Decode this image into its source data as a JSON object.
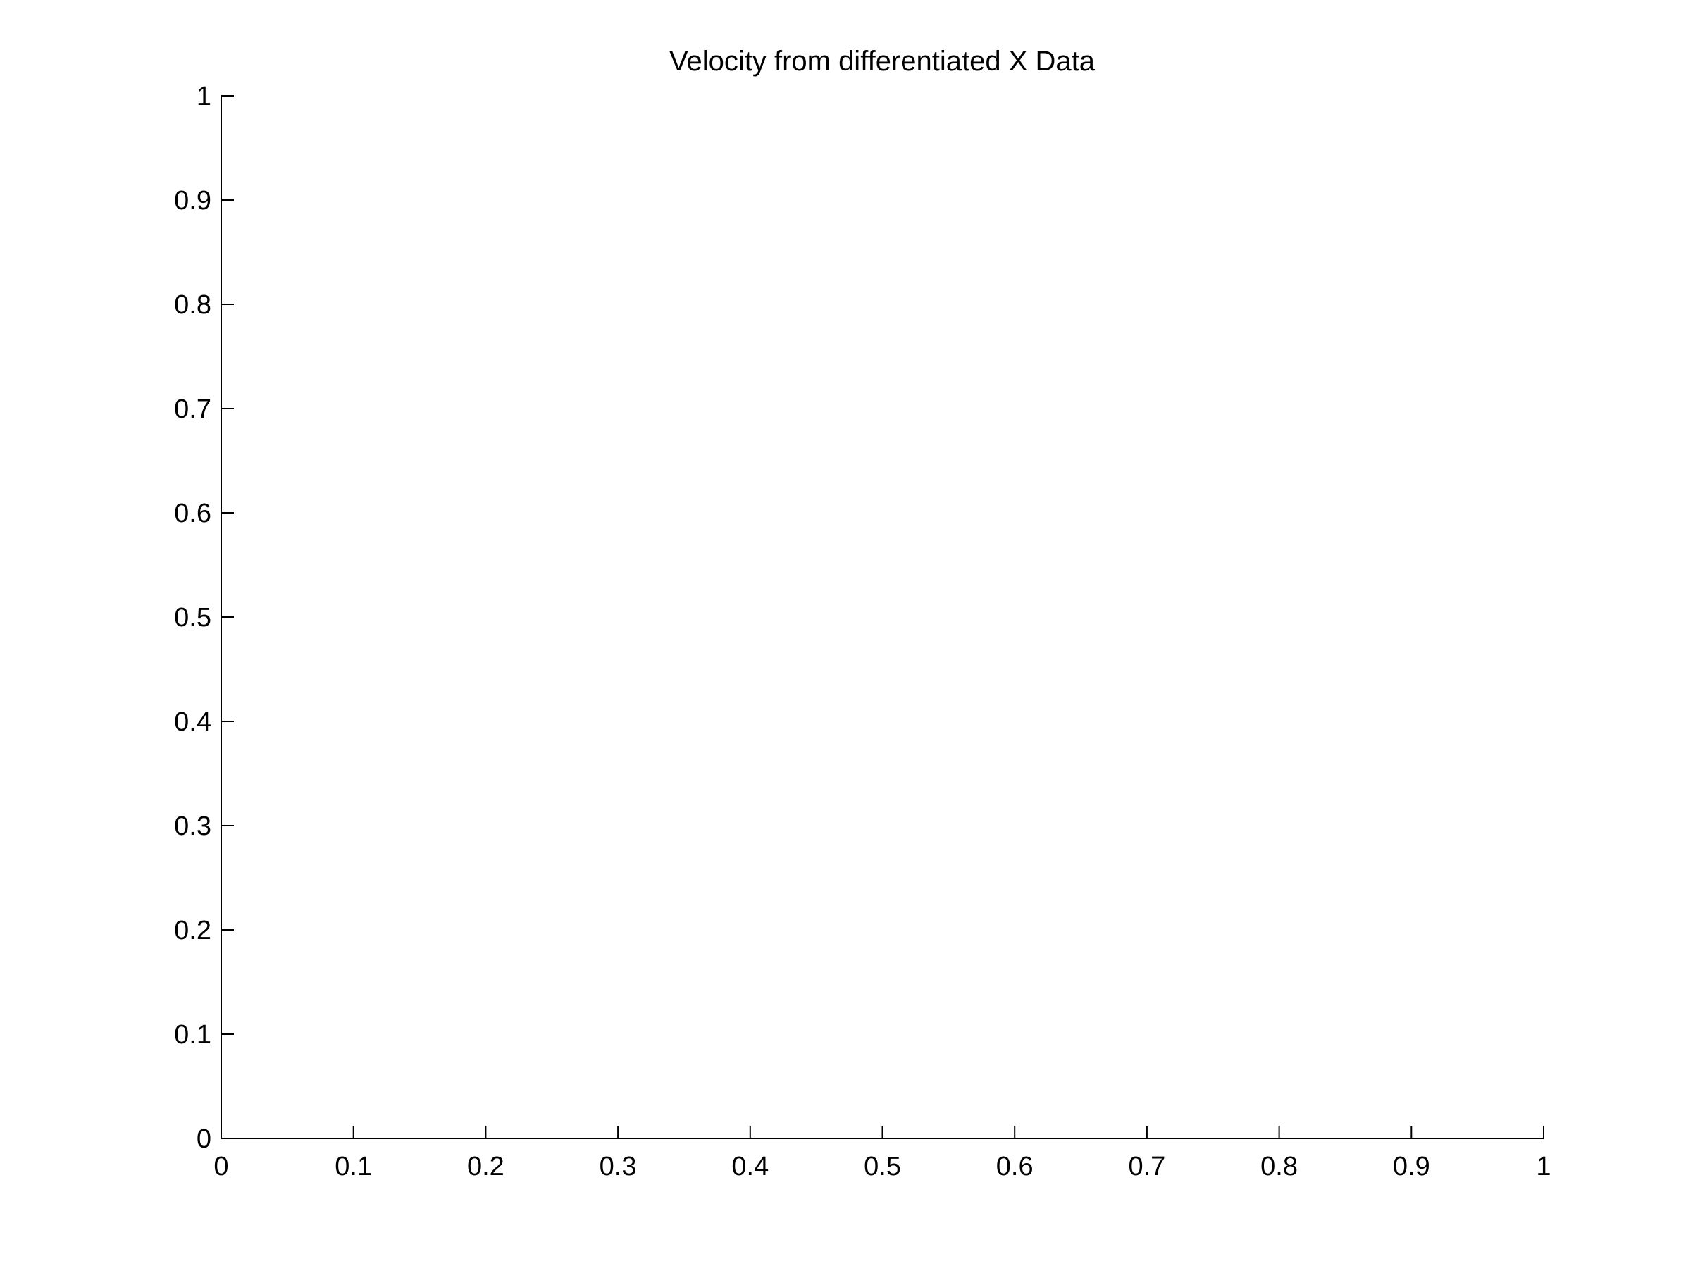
{
  "chart_data": {
    "type": "line",
    "title": "Velocity from differentiated X Data",
    "xlabel": "",
    "ylabel": "",
    "xlim": [
      0,
      1
    ],
    "ylim": [
      0,
      1
    ],
    "xticks": [
      0,
      0.1,
      0.2,
      0.3,
      0.4,
      0.5,
      0.6,
      0.7,
      0.8,
      0.9,
      1
    ],
    "yticks": [
      0,
      0.1,
      0.2,
      0.3,
      0.4,
      0.5,
      0.6,
      0.7,
      0.8,
      0.9,
      1
    ],
    "xtick_labels": [
      "0",
      "0.1",
      "0.2",
      "0.3",
      "0.4",
      "0.5",
      "0.6",
      "0.7",
      "0.8",
      "0.9",
      "1"
    ],
    "ytick_labels": [
      "0",
      "0.1",
      "0.2",
      "0.3",
      "0.4",
      "0.5",
      "0.6",
      "0.7",
      "0.8",
      "0.9",
      "1"
    ],
    "grid": false,
    "series": [],
    "colors": {
      "axis": "#000000",
      "background": "#ffffff"
    }
  }
}
